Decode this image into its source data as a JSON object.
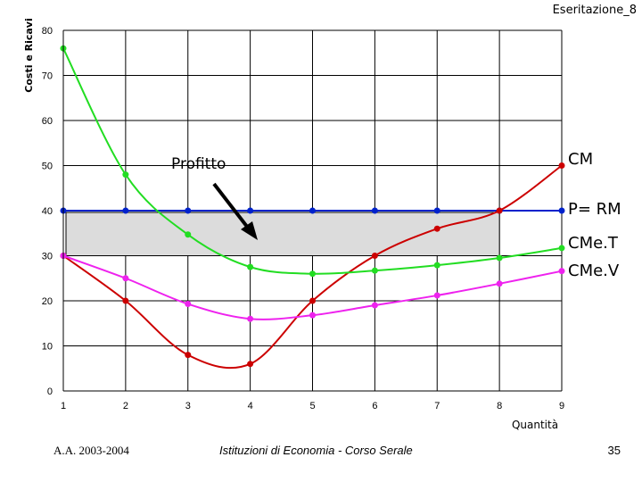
{
  "header": {
    "title": "Eseritazione_8"
  },
  "footer": {
    "left": "A.A. 2003-2004",
    "center": "Istituzioni di Economia  -  Corso Serale",
    "page": "35"
  },
  "chart_data": {
    "type": "line",
    "xlabel": "Quantità",
    "ylabel": "Costi e Ricavi",
    "x": [
      1,
      2,
      3,
      4,
      5,
      6,
      7,
      8,
      9
    ],
    "xlim": [
      1,
      9
    ],
    "ylim": [
      0,
      80
    ],
    "x_ticks": [
      "1",
      "2",
      "3",
      "4",
      "5",
      "6",
      "7",
      "8",
      "9"
    ],
    "y_ticks": [
      "0",
      "10",
      "20",
      "30",
      "40",
      "50",
      "60",
      "70",
      "80"
    ],
    "grid": true,
    "series": [
      {
        "name": "CM",
        "color": "#cc0000",
        "values": [
          30,
          20,
          8,
          6,
          20,
          30,
          36,
          40,
          50
        ]
      },
      {
        "name": "P= RM",
        "color": "#0022cc",
        "values": [
          40,
          40,
          40,
          40,
          40,
          40,
          40,
          40,
          40
        ]
      },
      {
        "name": "CMe.T",
        "color": "#22dd22",
        "values": [
          76,
          48,
          34.7,
          27.5,
          26,
          26.7,
          27.9,
          29.5,
          31.7
        ]
      },
      {
        "name": "CMe.V",
        "color": "#ee22ee",
        "values": [
          30,
          25,
          19.3,
          16,
          16.8,
          19,
          21.2,
          23.8,
          26.6
        ]
      }
    ],
    "annotations": {
      "profit_label": "Profitto",
      "profit_area": {
        "x_range": [
          1,
          8
        ],
        "y_range": [
          30,
          40
        ],
        "fill": "#dcdcdc"
      }
    }
  }
}
